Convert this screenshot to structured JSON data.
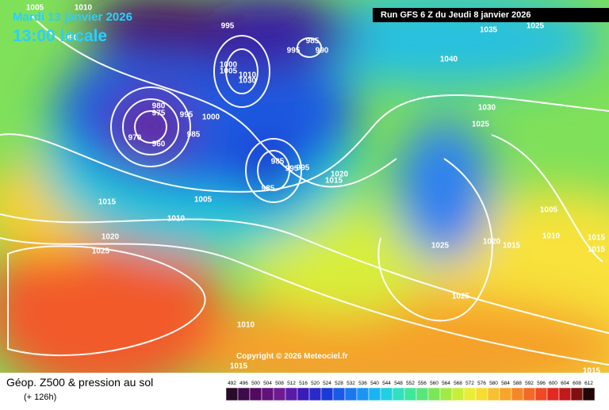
{
  "header": {
    "valid_date": "Mardi 13 janvier 2026",
    "local_time": "13:00 locale",
    "run": "Run GFS 6 Z du Jeudi 8 janvier 2026"
  },
  "map": {
    "copyright": "Copyright © 2026 Meteociel.fr",
    "isobar_labels": [
      "1005",
      "1010",
      "990",
      "995",
      "1000",
      "1005",
      "1010",
      "1030",
      "985",
      "995",
      "990",
      "1035",
      "1040",
      "1025",
      "980",
      "975",
      "995",
      "1000",
      "970",
      "960",
      "985",
      "985",
      "995",
      "995",
      "985",
      "1020",
      "1015",
      "1030",
      "1025",
      "1015",
      "1005",
      "1010",
      "1020",
      "1025",
      "1005",
      "1010",
      "1015",
      "1025",
      "1020",
      "1015",
      "1025",
      "1015",
      "1010",
      "1015",
      "1015"
    ]
  },
  "footer": {
    "title": "Géop. Z500 & pression au sol",
    "lead": "(+ 126h)",
    "scale": [
      "492",
      "496",
      "500",
      "504",
      "508",
      "512",
      "516",
      "520",
      "524",
      "528",
      "532",
      "536",
      "540",
      "544",
      "548",
      "552",
      "556",
      "560",
      "564",
      "568",
      "572",
      "576",
      "580",
      "584",
      "588",
      "592",
      "596",
      "600",
      "604",
      "608",
      "612"
    ]
  }
}
